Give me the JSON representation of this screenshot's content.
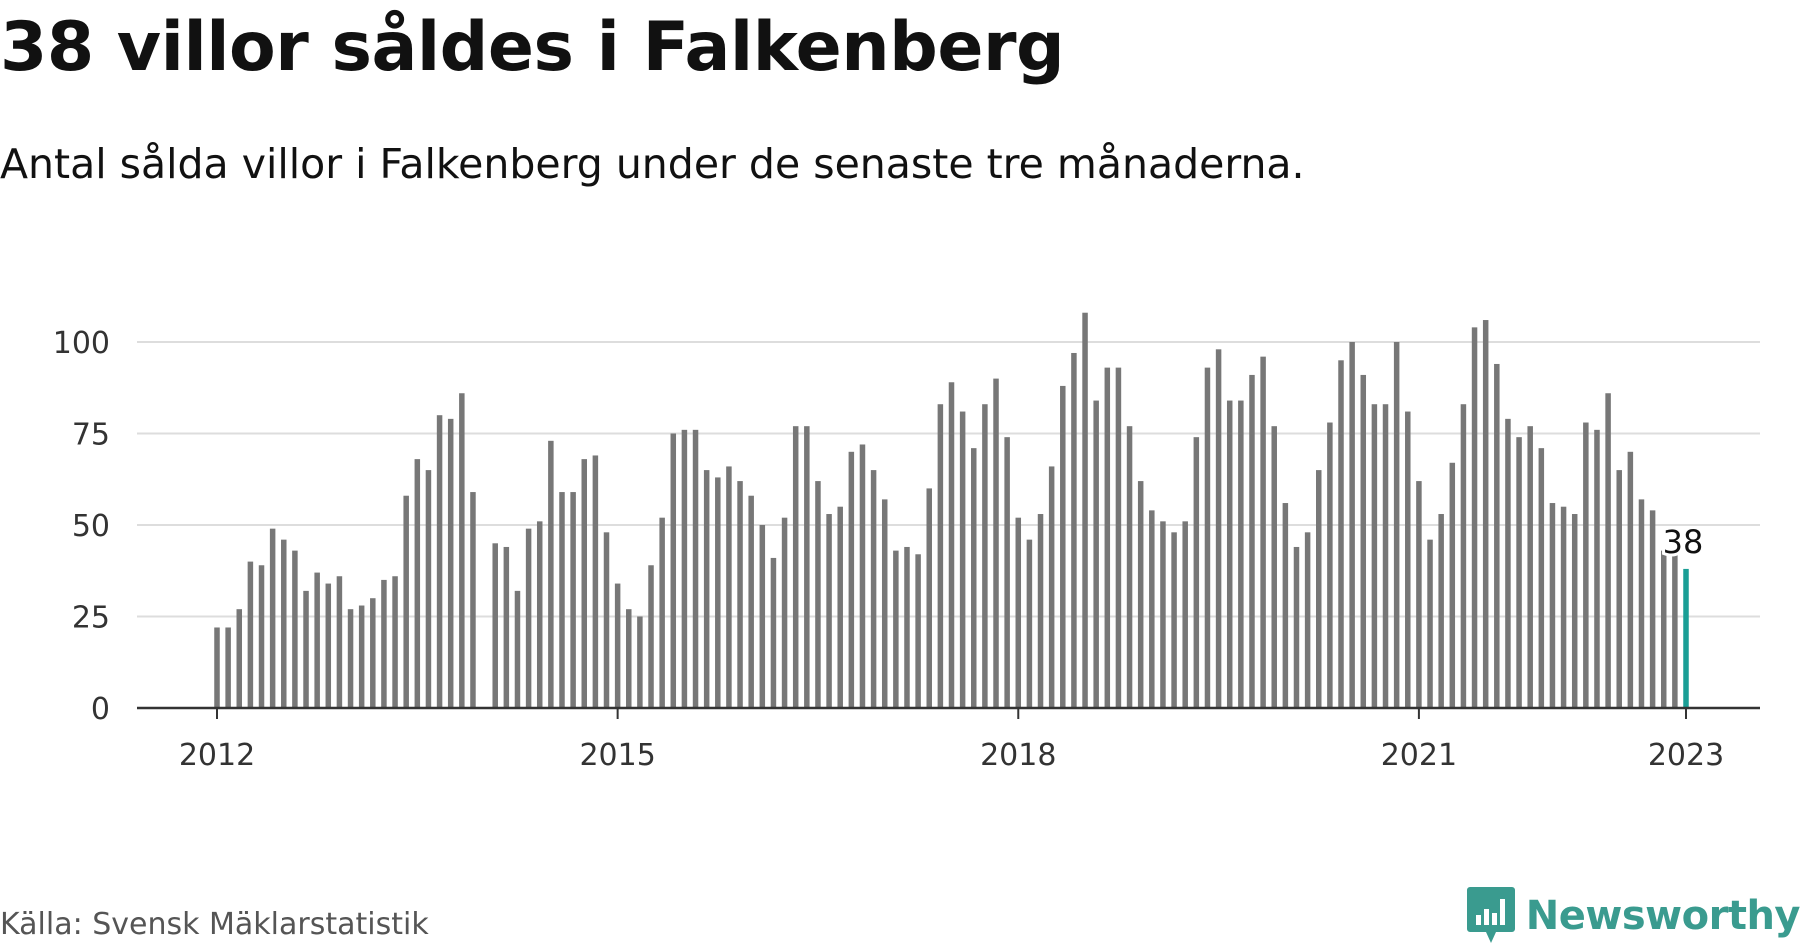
{
  "title": "38 villor såldes i Falkenberg",
  "subtitle": "Antal sålda villor i Falkenberg under de senaste tre månaderna.",
  "source": "Källa: Svensk Mäklarstatistik",
  "logo": {
    "text": "Newsworthy",
    "icon": "newsworthy-chart-bubble-icon"
  },
  "colors": {
    "bar": "#777777",
    "highlight": "#1a9e95",
    "grid": "#dddddd",
    "axis": "#333333",
    "logo": "#3a9b8f"
  },
  "chart_data": {
    "type": "bar",
    "x_start": "2012-01",
    "x_end": "2023-01",
    "xticks": [
      "2012",
      "2015",
      "2018",
      "2021",
      "2023"
    ],
    "yticks": [
      "0",
      "25",
      "50",
      "75",
      "100"
    ],
    "ylim": [
      0,
      110
    ],
    "grid": true,
    "highlight_label": "38",
    "series": [
      {
        "values": [
          22,
          22,
          27,
          40,
          39,
          49,
          46,
          43,
          32,
          37,
          34,
          36,
          27,
          28,
          30,
          35,
          36,
          58,
          68,
          65,
          80,
          79,
          86,
          59,
          null,
          45,
          44,
          32,
          49,
          51,
          73,
          59,
          59,
          68,
          69,
          48,
          34,
          27,
          25,
          39,
          52,
          75,
          76,
          76,
          65,
          63,
          66,
          62,
          58,
          50,
          41,
          52,
          77,
          77,
          62,
          53,
          55,
          70,
          72,
          65,
          57,
          43,
          44,
          42,
          60,
          83,
          89,
          81,
          71,
          83,
          90,
          74,
          52,
          46,
          53,
          66,
          88,
          97,
          108,
          84,
          93,
          93,
          77,
          62,
          54,
          51,
          48,
          51,
          74,
          93,
          98,
          84,
          84,
          91,
          96,
          77,
          56,
          44,
          48,
          65,
          78,
          95,
          100,
          91,
          83,
          83,
          100,
          81,
          62,
          46,
          53,
          67,
          83,
          104,
          106,
          94,
          79,
          74,
          77,
          71,
          56,
          55,
          53,
          78,
          76,
          86,
          65,
          70,
          57,
          54,
          43,
          42,
          38
        ]
      }
    ]
  }
}
